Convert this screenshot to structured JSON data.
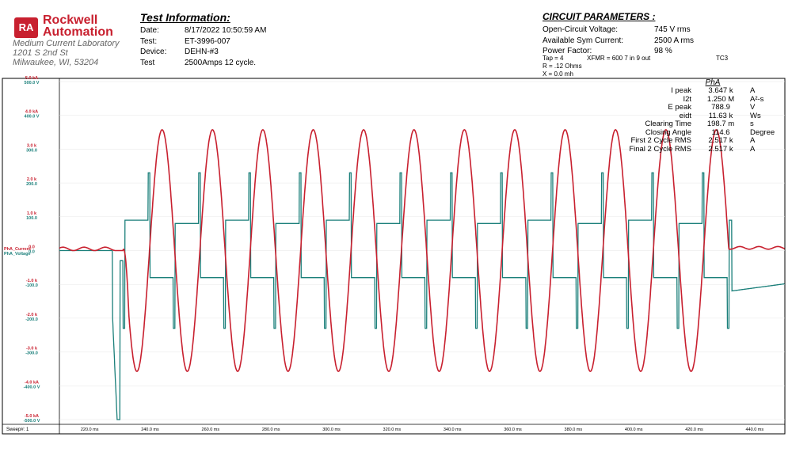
{
  "header": {
    "logo_badge": "RA",
    "brand_line1": "Rockwell",
    "brand_line2": "Automation",
    "lab_name": "Medium Current Laboratory",
    "lab_addr1": "1201 S 2nd St",
    "lab_addr2": "Milwaukee, WI, 53204"
  },
  "test_info": {
    "title": "Test Information:",
    "rows": [
      {
        "label": "Date:",
        "value": "8/17/2022   10:50:59 AM"
      },
      {
        "label": "Test:",
        "value": "ET-3996-007"
      },
      {
        "label": "Device:",
        "value": "DEHN-#3"
      },
      {
        "label": "Test",
        "value": "2500Amps 12 cycle."
      }
    ]
  },
  "circuit": {
    "title": "CIRCUIT PARAMETERS :",
    "rows": [
      {
        "label": "Open-Circuit Voltage:",
        "value": "745 V rms"
      },
      {
        "label": "Available Sym Current:",
        "value": "2500 A rms"
      },
      {
        "label": "Power Factor:",
        "value": "98 %"
      }
    ],
    "tap": "Tap = 4",
    "xfmr": "XFMR = 600 7 in 9 out",
    "tc": "TC3",
    "r": "R = .12 Ohms",
    "x": "X = 0.0 mh"
  },
  "stats": {
    "title": "PhA",
    "rows": [
      {
        "name": "I peak",
        "value": "3.647 k",
        "unit": "A"
      },
      {
        "name": "I2t",
        "value": "1.250 M",
        "unit": "A²-s"
      },
      {
        "name": "E peak",
        "value": "788.9",
        "unit": "V"
      },
      {
        "name": "eidt",
        "value": "11.63 k",
        "unit": "Ws"
      },
      {
        "name": "Clearing Time",
        "value": "198.7 m",
        "unit": "s"
      },
      {
        "name": "Closing Angle",
        "value": "114.6",
        "unit": "Degree"
      },
      {
        "name": "First 2 Cycle RMS",
        "value": "2.517 k",
        "unit": "A"
      },
      {
        "name": "Final 2 Cycle RMS",
        "value": "2.517 k",
        "unit": "A"
      }
    ]
  },
  "sweep_label": "Sweep#: 1",
  "chart_data": {
    "type": "line",
    "x_unit": "ms",
    "xlim": [
      210,
      450
    ],
    "x_ticks": [
      "220.0 ms",
      "240.0 ms",
      "260.0 ms",
      "280.0 ms",
      "300.0 ms",
      "320.0 ms",
      "340.0 ms",
      "360.0 ms",
      "380.0 ms",
      "400.0 ms",
      "420.0 ms",
      "440.0 ms"
    ],
    "ylim_current_kA": [
      -5,
      5
    ],
    "ylim_voltage_V": [
      -500,
      500
    ],
    "y_ticks_current": [
      "5.0 kA",
      "4.0 kA",
      "3.0 k",
      "2.0 k",
      "1.0 k",
      "0.0",
      "-1.0 k",
      "-2.0 k",
      "-3.0 k",
      "-4.0 kA",
      "-5.0 kA"
    ],
    "y_ticks_voltage": [
      "500.0 V",
      "400.0 V",
      "300.0",
      "200.0",
      "100.0",
      "0.0",
      "-100.0",
      "-200.0",
      "-300.0",
      "-400.0 V",
      "-500.0 V"
    ],
    "series": [
      {
        "name": "PhA_Current",
        "color": "#c8202f",
        "frequency_hz": 60,
        "peak_kA": 3.647,
        "start_ms": 231,
        "end_ms": 431.5,
        "pre_offset_kA": 0.05
      },
      {
        "name": "PhA_Voltage",
        "color": "#1a7f7a",
        "arc_plateau_V": 80,
        "peak_V": 788.9,
        "prestrike_min_V": -500
      }
    ]
  }
}
